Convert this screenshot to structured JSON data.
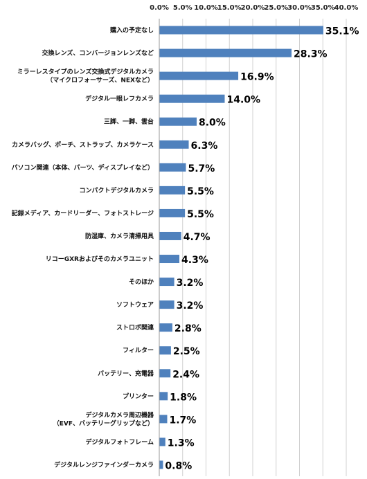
{
  "chart_data": {
    "type": "bar",
    "orientation": "horizontal",
    "title": "",
    "xlabel": "",
    "ylabel": "",
    "xlim": [
      0,
      40
    ],
    "tick_step": 5,
    "tick_labels": [
      "0.0%",
      "5.0%",
      "10.0%",
      "15.0%",
      "20.0%",
      "25.0%",
      "30.0%",
      "35.0%",
      "40.0%"
    ],
    "x_axis_position": "top",
    "grid": true,
    "legend": "none",
    "bar_color": "#4f81bd",
    "categories": [
      [
        "購入の予定なし"
      ],
      [
        "交換レンズ、コンバージョンレンズなど"
      ],
      [
        "ミラーレスタイプのレンズ交換式デジタルカメラ",
        "（マイクロフォーサーズ、NEXなど）"
      ],
      [
        "デジタル一眼レフカメラ"
      ],
      [
        "三脚、一脚、雲台"
      ],
      [
        "カメラバッグ、ポーチ、ストラップ、カメラケース"
      ],
      [
        "パソコン関連（本体、パーツ、ディスプレイなど）"
      ],
      [
        "コンパクトデジタルカメラ"
      ],
      [
        "記録メディア、カードリーダー、フォトストレージ"
      ],
      [
        "防湿庫、カメラ清掃用具"
      ],
      [
        "リコーGXRおよびそのカメラユニット"
      ],
      [
        "そのほか"
      ],
      [
        "ソフトウェア"
      ],
      [
        "ストロボ関連"
      ],
      [
        "フィルター"
      ],
      [
        "バッテリー、充電器"
      ],
      [
        "プリンター"
      ],
      [
        "デジタルカメラ周辺機器",
        "（EVF、バッテリーグリップなど）"
      ],
      [
        "デジタルフォトフレーム"
      ],
      [
        "デジタルレンジファインダーカメラ"
      ]
    ],
    "values": [
      35.1,
      28.3,
      16.9,
      14.0,
      8.0,
      6.3,
      5.7,
      5.5,
      5.5,
      4.7,
      4.3,
      3.2,
      3.2,
      2.8,
      2.5,
      2.4,
      1.8,
      1.7,
      1.3,
      0.8
    ],
    "value_labels": [
      "35.1%",
      "28.3%",
      "16.9%",
      "14.0%",
      "8.0%",
      "6.3%",
      "5.7%",
      "5.5%",
      "5.5%",
      "4.7%",
      "4.3%",
      "3.2%",
      "3.2%",
      "2.8%",
      "2.5%",
      "2.4%",
      "1.8%",
      "1.7%",
      "1.3%",
      "0.8%"
    ]
  }
}
